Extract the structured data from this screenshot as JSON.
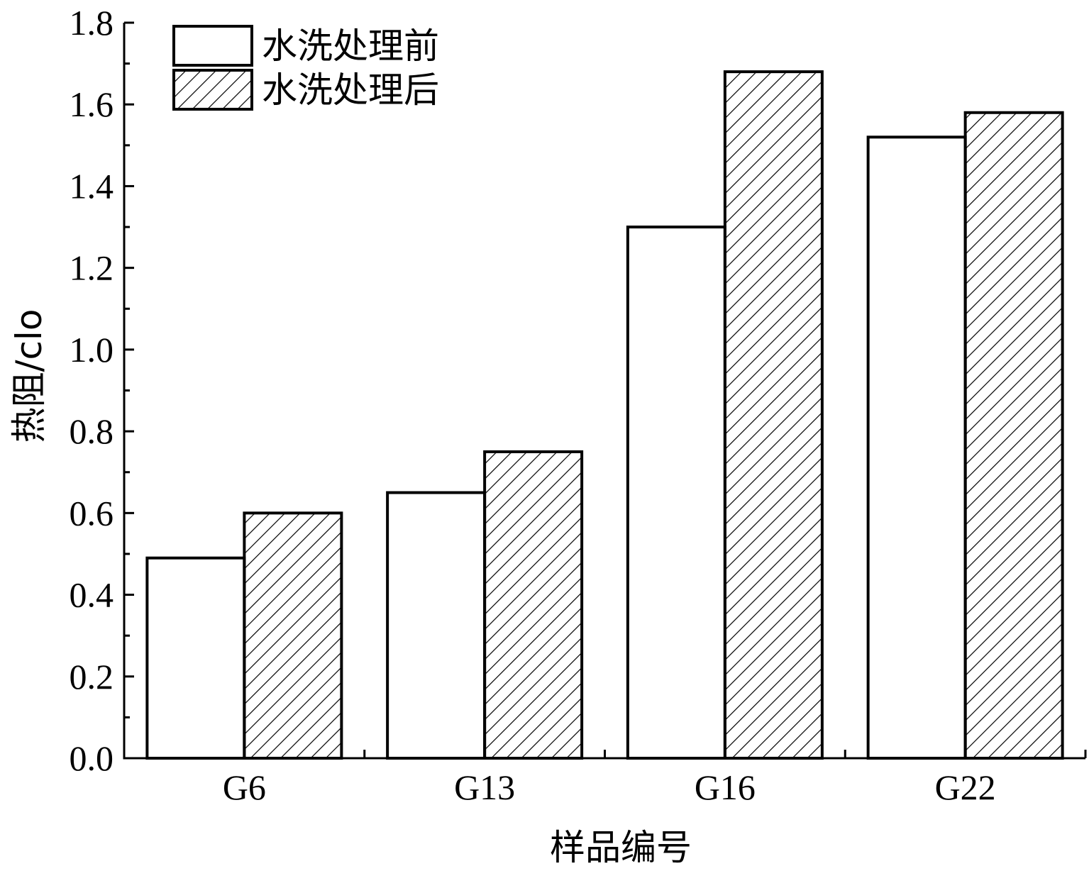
{
  "chart_data": {
    "type": "bar",
    "title": "",
    "xlabel": "样品编号",
    "ylabel": "热阻/clo",
    "categories": [
      "G6",
      "G13",
      "G16",
      "G22"
    ],
    "series": [
      {
        "name": "水洗处理前",
        "values": [
          0.49,
          0.65,
          1.3,
          1.52
        ],
        "fill": "#ffffff",
        "pattern": "none"
      },
      {
        "name": "水洗处理后",
        "values": [
          0.6,
          0.75,
          1.68,
          1.58
        ],
        "fill": "#ffffff",
        "pattern": "diagonal-hatch"
      }
    ],
    "ylim": [
      0,
      1.8
    ],
    "yticks": [
      "0.0",
      "0.2",
      "0.4",
      "0.6",
      "0.8",
      "1.0",
      "1.2",
      "1.4",
      "1.6",
      "1.8"
    ],
    "grid": false,
    "legend_position": "top-left",
    "colors": {
      "stroke": "#000000",
      "background": "#ffffff"
    }
  }
}
